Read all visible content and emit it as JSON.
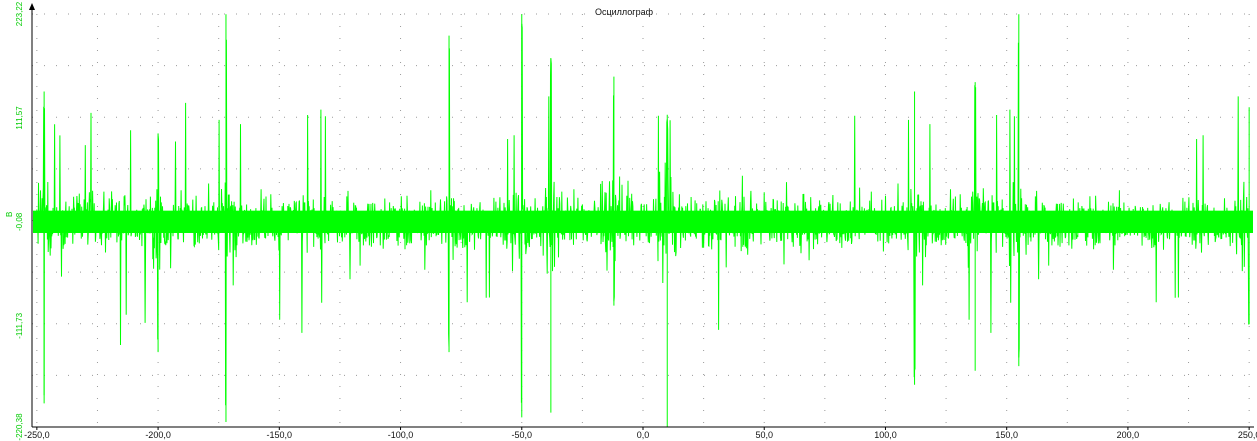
{
  "chart_data": {
    "type": "line",
    "title": "Осциллограф",
    "xlabel": "",
    "ylabel": "",
    "xlim": [
      -252,
      252
    ],
    "ylim": [
      -220.38,
      223.22
    ],
    "x_ticks": [
      -250,
      -200,
      -150,
      -100,
      -50,
      0,
      50,
      100,
      150,
      200,
      250
    ],
    "x_tick_labels": [
      "-250,0",
      "-200,0",
      "-150,0",
      "-100,0",
      "-50,0",
      "0,0",
      "50,0",
      "100,0",
      "150,0",
      "200,0",
      "250,0"
    ],
    "y_ticks": [
      223.22,
      111.57,
      -0.08,
      -111.73,
      -220.38
    ],
    "y_tick_labels": [
      "223,22",
      "111,57",
      "-0,08",
      "-111,73",
      "-220,38"
    ],
    "y_axis_marker_label": "В",
    "grid": "dotted",
    "colors": {
      "signal": "#00ff00",
      "y_labels": "#00cc00",
      "grid": "#9a9a9a",
      "axis": "#000000"
    },
    "series": [
      {
        "values_note": "dense noise signal; representative envelope peaks",
        "peaks": [
          {
            "x": -247,
            "max": 140,
            "min": -195
          },
          {
            "x": -200,
            "max": 95,
            "min": -140
          },
          {
            "x": -172,
            "max": 223,
            "min": -215
          },
          {
            "x": -80,
            "max": 200,
            "min": -140
          },
          {
            "x": -50,
            "max": 223,
            "min": -210
          },
          {
            "x": -38,
            "max": 176,
            "min": -205
          },
          {
            "x": -12,
            "max": 156,
            "min": -90
          },
          {
            "x": 10,
            "max": 115,
            "min": -220
          },
          {
            "x": 112,
            "max": 140,
            "min": -175
          },
          {
            "x": 137,
            "max": 150,
            "min": -160
          },
          {
            "x": 155,
            "max": 223,
            "min": -155
          },
          {
            "x": 250,
            "max": 123,
            "min": -110
          }
        ],
        "base_amplitude": 45,
        "peak_noise": 75
      }
    ]
  }
}
